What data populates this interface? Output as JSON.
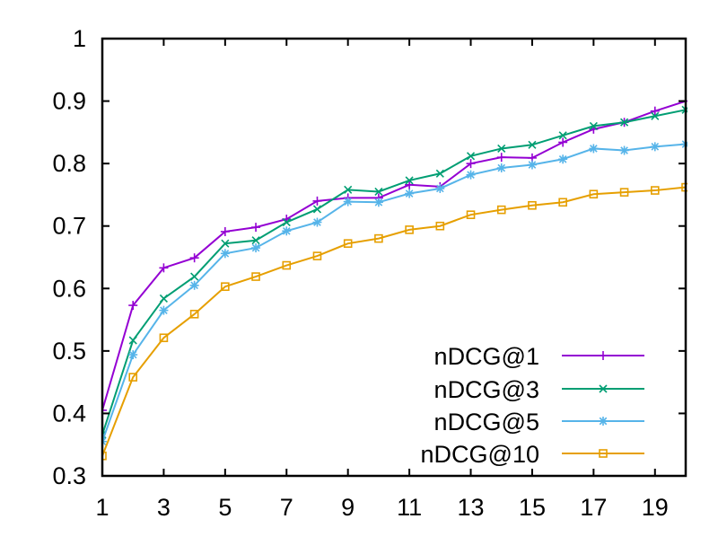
{
  "chart_data": {
    "type": "line",
    "title": "",
    "xlabel": "",
    "ylabel": "",
    "xlim": [
      1,
      20
    ],
    "ylim": [
      0.3,
      1.0
    ],
    "grid": false,
    "legend_position": "bottom-right",
    "x": [
      1,
      2,
      3,
      4,
      5,
      6,
      7,
      8,
      9,
      10,
      11,
      12,
      13,
      14,
      15,
      16,
      17,
      18,
      19,
      20
    ],
    "x_ticks": [
      "1",
      "3",
      "5",
      "7",
      "9",
      "11",
      "13",
      "15",
      "17",
      "19"
    ],
    "x_tick_values": [
      1,
      3,
      5,
      7,
      9,
      11,
      13,
      15,
      17,
      19
    ],
    "y_ticks": [
      "0.3",
      "0.4",
      "0.5",
      "0.6",
      "0.7",
      "0.8",
      "0.9",
      "1"
    ],
    "y_tick_values": [
      0.3,
      0.4,
      0.5,
      0.6,
      0.7,
      0.8,
      0.9,
      1.0
    ],
    "series": [
      {
        "name": "nDCG@1",
        "color": "#9400d3",
        "marker": "plus",
        "values": [
          0.405,
          0.573,
          0.633,
          0.649,
          0.691,
          0.698,
          0.711,
          0.74,
          0.745,
          0.745,
          0.766,
          0.763,
          0.8,
          0.81,
          0.809,
          0.834,
          0.855,
          0.866,
          0.884,
          0.9
        ]
      },
      {
        "name": "nDCG@3",
        "color": "#009e73",
        "marker": "cross",
        "values": [
          0.366,
          0.517,
          0.584,
          0.619,
          0.672,
          0.677,
          0.706,
          0.727,
          0.758,
          0.755,
          0.773,
          0.784,
          0.812,
          0.824,
          0.83,
          0.845,
          0.86,
          0.866,
          0.876,
          0.886
        ]
      },
      {
        "name": "nDCG@5",
        "color": "#56b4e9",
        "marker": "star",
        "values": [
          0.355,
          0.494,
          0.565,
          0.605,
          0.656,
          0.665,
          0.692,
          0.706,
          0.739,
          0.738,
          0.752,
          0.76,
          0.782,
          0.793,
          0.798,
          0.807,
          0.824,
          0.821,
          0.827,
          0.831
        ]
      },
      {
        "name": "nDCG@10",
        "color": "#e69f00",
        "marker": "square",
        "values": [
          0.332,
          0.458,
          0.521,
          0.559,
          0.603,
          0.619,
          0.637,
          0.652,
          0.672,
          0.68,
          0.694,
          0.7,
          0.718,
          0.726,
          0.733,
          0.738,
          0.751,
          0.754,
          0.757,
          0.762
        ]
      }
    ]
  }
}
